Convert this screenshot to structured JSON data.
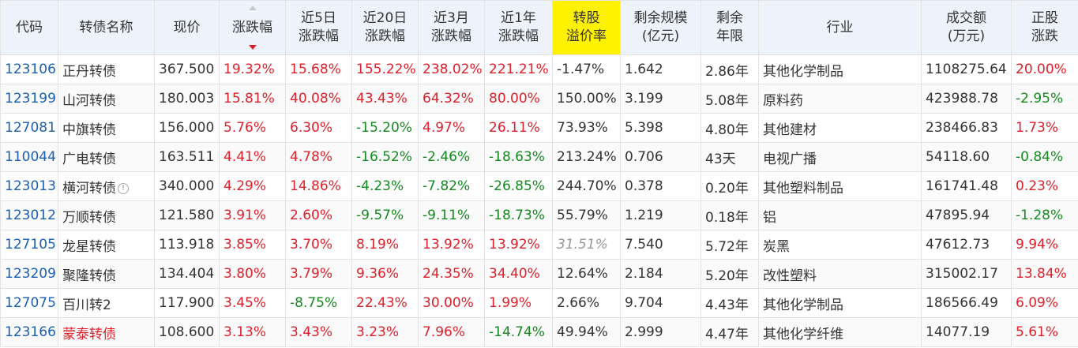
{
  "headers": {
    "code": "代码",
    "name": "转债名称",
    "price": "现价",
    "change": "涨跌幅",
    "change_5d": [
      "近5日",
      "涨跌幅"
    ],
    "change_20d": [
      "近20日",
      "涨跌幅"
    ],
    "change_3m": [
      "近3月",
      "涨跌幅"
    ],
    "change_1y": [
      "近1年",
      "涨跌幅"
    ],
    "premium": [
      "转股",
      "溢价率"
    ],
    "remaining_size": [
      "剩余规模",
      "(亿元)"
    ],
    "remaining_term": [
      "剩余",
      "年限"
    ],
    "industry": "行业",
    "turnover": [
      "成交额",
      "(万元)"
    ],
    "stock_change": [
      "正股",
      "涨跌"
    ]
  },
  "colors": {
    "header_bg": "#eef3fb",
    "premium_header_bg": "#fff200",
    "up": "#e0202a",
    "down": "#138a1e",
    "code_link": "#1a5fb4"
  },
  "rows": [
    {
      "code": "123106",
      "name": "正丹转债",
      "price": "367.500",
      "change": "19.32%",
      "change_5d": "15.68%",
      "change_20d": "155.22%",
      "change_3m": "238.02%",
      "change_1y": "221.21%",
      "premium": "-1.47%",
      "remaining_size": "1.642",
      "remaining_term": "2.86年",
      "industry": "其他化学制品",
      "turnover": "1108275.64",
      "stock_change": "20.00%"
    },
    {
      "code": "123199",
      "name": "山河转债",
      "price": "180.003",
      "change": "15.81%",
      "change_5d": "40.08%",
      "change_20d": "43.43%",
      "change_3m": "64.32%",
      "change_1y": "80.00%",
      "premium": "150.00%",
      "remaining_size": "3.199",
      "remaining_term": "5.08年",
      "industry": "原料药",
      "turnover": "423988.78",
      "stock_change": "-2.95%"
    },
    {
      "code": "127081",
      "name": "中旗转债",
      "price": "156.000",
      "change": "5.76%",
      "change_5d": "6.30%",
      "change_20d": "-15.20%",
      "change_3m": "4.97%",
      "change_1y": "26.11%",
      "premium": "73.93%",
      "remaining_size": "5.398",
      "remaining_term": "4.80年",
      "industry": "其他建材",
      "turnover": "238466.83",
      "stock_change": "1.73%"
    },
    {
      "code": "110044",
      "name": "广电转债",
      "price": "163.511",
      "change": "4.41%",
      "change_5d": "4.78%",
      "change_20d": "-16.52%",
      "change_3m": "-2.46%",
      "change_1y": "-18.63%",
      "premium": "213.24%",
      "remaining_size": "0.706",
      "remaining_term": "43天",
      "industry": "电视广播",
      "turnover": "54118.60",
      "stock_change": "-0.84%"
    },
    {
      "code": "123013",
      "name": "横河转债",
      "price": "340.000",
      "change": "4.29%",
      "change_5d": "14.86%",
      "change_20d": "-4.23%",
      "change_3m": "-7.82%",
      "change_1y": "-26.85%",
      "premium": "244.70%",
      "remaining_size": "0.378",
      "remaining_term": "0.20年",
      "industry": "其他塑料制品",
      "turnover": "161741.48",
      "stock_change": "0.23%"
    },
    {
      "code": "123012",
      "name": "万顺转债",
      "price": "121.580",
      "change": "3.91%",
      "change_5d": "2.60%",
      "change_20d": "-9.57%",
      "change_3m": "-9.11%",
      "change_1y": "-18.73%",
      "premium": "55.79%",
      "remaining_size": "1.219",
      "remaining_term": "0.18年",
      "industry": "铝",
      "turnover": "47895.94",
      "stock_change": "-1.28%"
    },
    {
      "code": "127105",
      "name": "龙星转债",
      "price": "113.918",
      "change": "3.85%",
      "change_5d": "3.70%",
      "change_20d": "8.19%",
      "change_3m": "13.92%",
      "change_1y": "13.92%",
      "premium": "31.51%",
      "remaining_size": "7.540",
      "remaining_term": "5.72年",
      "industry": "炭黑",
      "turnover": "47612.73",
      "stock_change": "9.94%"
    },
    {
      "code": "123209",
      "name": "聚隆转债",
      "price": "134.404",
      "change": "3.80%",
      "change_5d": "3.79%",
      "change_20d": "9.36%",
      "change_3m": "24.35%",
      "change_1y": "34.40%",
      "premium": "12.64%",
      "remaining_size": "2.184",
      "remaining_term": "5.20年",
      "industry": "改性塑料",
      "turnover": "315002.17",
      "stock_change": "13.84%"
    },
    {
      "code": "127075",
      "name": "百川转2",
      "price": "117.900",
      "change": "3.45%",
      "change_5d": "-8.75%",
      "change_20d": "22.43%",
      "change_3m": "30.00%",
      "change_1y": "1.99%",
      "premium": "2.66%",
      "remaining_size": "9.704",
      "remaining_term": "4.43年",
      "industry": "其他化学制品",
      "turnover": "186566.49",
      "stock_change": "6.09%"
    },
    {
      "code": "123166",
      "name": "蒙泰转债",
      "price": "108.600",
      "change": "3.13%",
      "change_5d": "3.43%",
      "change_20d": "3.23%",
      "change_3m": "7.96%",
      "change_1y": "-14.74%",
      "premium": "49.94%",
      "remaining_size": "2.999",
      "remaining_term": "4.47年",
      "industry": "其他化学纤维",
      "turnover": "14077.19",
      "stock_change": "5.61%"
    }
  ]
}
